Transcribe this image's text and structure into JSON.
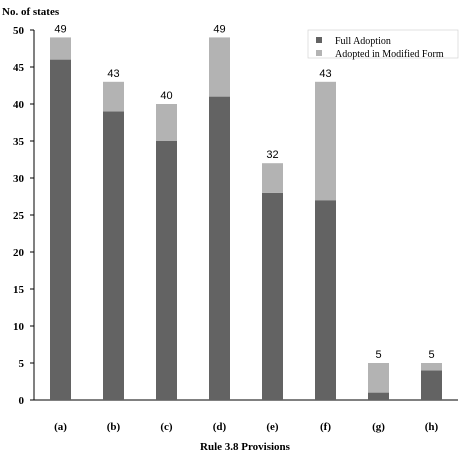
{
  "chart_data": {
    "type": "bar",
    "stacked": true,
    "ylabel": "No. of states",
    "xlabel": "Rule 3.8 Provisions",
    "ylim": [
      0,
      50
    ],
    "yticks": [
      0,
      5,
      10,
      15,
      20,
      25,
      30,
      35,
      40,
      45,
      50
    ],
    "categories": [
      "(a)",
      "(b)",
      "(c)",
      "(d)",
      "(e)",
      "(f)",
      "(g)",
      "(h)"
    ],
    "series": [
      {
        "name": "Full Adoption",
        "color": "#636363",
        "values": [
          46,
          39,
          35,
          41,
          28,
          27,
          1,
          4
        ]
      },
      {
        "name": "Adopted in Modified Form",
        "color": "#b3b3b3",
        "values": [
          3,
          4,
          5,
          8,
          4,
          16,
          4,
          1
        ]
      }
    ],
    "totals": [
      "49",
      "43",
      "40",
      "49",
      "32",
      "43",
      "5",
      "5"
    ],
    "legend_position": "top-right",
    "grid": false
  }
}
